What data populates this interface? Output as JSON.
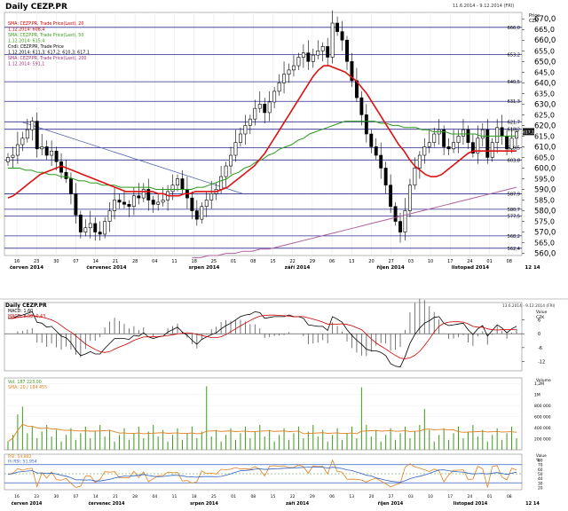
{
  "window": {
    "title": "Daily CEZP.PR",
    "date_range": "11.6.2014 - 9.12.2014 (FRI)",
    "lower_date_range": "13.6.2014 - 9.12.2014 (FRI)"
  },
  "main_panel": {
    "legend": [
      {
        "text": "SMA: CEZP.PR, Trade Price(Last), 20",
        "color": "#cc0000"
      },
      {
        "text": "1.12.2014: 608,4",
        "color": "#cc0000"
      },
      {
        "text": "SMA: CEZP.PR, Trade Price(Last), 50",
        "color": "#3a9a1a"
      },
      {
        "text": "1.12.2014: 615,4",
        "color": "#3a9a1a"
      },
      {
        "text": "Cndl: CEZP.PR, Trade Price",
        "color": "#000000"
      },
      {
        "text": "1.12.2014: 611,3; 617,2; 610,3; 617,1",
        "color": "#000000"
      },
      {
        "text": "SMA: CEZP.PR, Trade Price(Last), 200",
        "color": "#a0307a"
      },
      {
        "text": "1.12.2014: 591,1",
        "color": "#a0307a"
      }
    ],
    "price_label": "Price",
    "currency_label": "CZK",
    "y_ticks": [
      "670,0",
      "665,0",
      "660,0",
      "655,0",
      "650,0",
      "645,0",
      "640,0",
      "635,0",
      "630,0",
      "625,0",
      "620,0",
      "615,0",
      "610,0",
      "605,0",
      "600,0",
      "595,0",
      "590,0",
      "585,0",
      "580,0",
      "575,0",
      "570,0",
      "565,0",
      "560,0"
    ],
    "h_lines": [
      {
        "value": 666.0,
        "label": "666,0"
      },
      {
        "value": 653.2,
        "label": "653,2"
      },
      {
        "value": 640.5,
        "label": "640,5"
      },
      {
        "value": 631.3,
        "label": "631,3"
      },
      {
        "value": 621.7,
        "label": "621,7"
      },
      {
        "value": 618.2,
        "label": "618,2"
      },
      {
        "value": 609.5,
        "label": "609,5"
      },
      {
        "value": 603.8,
        "label": "603,8"
      },
      {
        "value": 587.9,
        "label": "587,9"
      },
      {
        "value": 580.7,
        "label": "580,7"
      },
      {
        "value": 577.5,
        "label": "577,5"
      },
      {
        "value": 568.2,
        "label": "568,2"
      },
      {
        "value": 562.4,
        "label": "562,4"
      }
    ],
    "last_price_badge": "617,1",
    "day_ticks": [
      "16",
      "23",
      "30",
      "07",
      "14",
      "21",
      "28",
      "04",
      "11",
      "18",
      "25",
      "01",
      "08",
      "15",
      "22",
      "29",
      "06",
      "13",
      "20",
      "27",
      "03",
      "10",
      "17",
      "24",
      "01",
      "08"
    ],
    "month_labels": [
      "červen 2014",
      "červenec 2014",
      "srpen 2014",
      "září 2014",
      "říjen 2014",
      "listopad 2014",
      "12 14"
    ]
  },
  "chart_data": [
    {
      "type": "candlestick",
      "title": "Daily CEZP.PR",
      "ylim": [
        559,
        673
      ],
      "x_start": "2014-06-11",
      "x_end": "2014-12-09",
      "close": [
        605,
        606,
        611,
        614,
        618,
        622,
        609,
        610,
        606,
        608,
        603,
        598,
        595,
        588,
        578,
        570,
        572,
        574,
        570,
        569,
        575,
        580,
        585,
        584,
        583,
        582,
        587,
        586,
        590,
        585,
        583,
        584,
        585,
        589,
        592,
        595,
        590,
        586,
        580,
        576,
        582,
        585,
        588,
        590,
        596,
        601,
        606,
        612,
        616,
        620,
        623,
        628,
        630,
        626,
        631,
        636,
        640,
        644,
        646,
        648,
        652,
        654,
        650,
        653,
        655,
        657,
        652,
        668,
        664,
        660,
        650,
        641,
        633,
        625,
        616,
        610,
        606,
        600,
        592,
        582,
        575,
        570,
        580,
        592,
        600,
        606,
        610,
        612,
        616,
        618,
        610,
        609,
        612,
        615,
        618,
        612,
        607,
        614,
        618,
        605,
        612,
        619,
        615,
        609,
        614,
        617
      ],
      "sma20": [
        586,
        587,
        589,
        591,
        593,
        595,
        597,
        598,
        599,
        600,
        601,
        600,
        599,
        598,
        597,
        596,
        595,
        594,
        593,
        592,
        591,
        590,
        589,
        589,
        589,
        589,
        589,
        589,
        588,
        588,
        587,
        587,
        587,
        588,
        588,
        589,
        589,
        589,
        589,
        589,
        590,
        591,
        593,
        595,
        597,
        599,
        601,
        604,
        607,
        611,
        615,
        619,
        623,
        627,
        631,
        635,
        639,
        643,
        646,
        648,
        648,
        647,
        646,
        645,
        643,
        641,
        638,
        635,
        631,
        627,
        623,
        619,
        615,
        611,
        608,
        604,
        601,
        599,
        597,
        596,
        596,
        597,
        599,
        601,
        603,
        605,
        607,
        608,
        608,
        608,
        608,
        608,
        608,
        608,
        608,
        608
      ],
      "sma50": [
        600,
        600,
        600,
        599,
        599,
        598,
        598,
        597,
        597,
        596,
        596,
        595,
        594,
        594,
        593,
        593,
        592,
        592,
        592,
        591,
        591,
        591,
        591,
        591,
        591,
        590,
        590,
        590,
        590,
        590,
        590,
        590,
        591,
        591,
        592,
        593,
        594,
        595,
        597,
        598,
        600,
        601,
        603,
        604,
        606,
        607,
        609,
        610,
        611,
        613,
        614,
        616,
        617,
        618,
        619,
        620,
        621,
        622,
        622,
        622,
        622,
        622,
        622,
        621,
        621,
        620,
        620,
        619,
        619,
        619,
        618,
        618,
        617,
        617,
        617,
        616,
        616,
        616,
        616,
        616,
        615,
        615,
        615,
        615,
        615,
        615,
        615
      ],
      "sma200": [
        558,
        558,
        559,
        559,
        560,
        560,
        561,
        561,
        562,
        562,
        563,
        564,
        565,
        566,
        567,
        568,
        569,
        570,
        571,
        572,
        573,
        574,
        575,
        576,
        577,
        578,
        579,
        580,
        581,
        582,
        583,
        584,
        585,
        586,
        587,
        588,
        589,
        590,
        591
      ],
      "trendline": {
        "from": [
          0.035,
          621.5
        ],
        "to": [
          0.46,
          588
        ]
      }
    },
    {
      "type": "line",
      "title": "MACD",
      "legend": [
        {
          "text": "MACD: 1,60",
          "color": "#000000"
        },
        {
          "text": "MACD: 8,98 -0,43",
          "color": "#cc0000"
        }
      ],
      "ylabel": "CZK",
      "y_ticks": [
        "6",
        "0",
        "-6",
        "-12"
      ],
      "ylim": [
        -16,
        10
      ]
    },
    {
      "type": "bar",
      "title": "Volume",
      "legend": [
        {
          "text": "Vol: 187 223,00",
          "color": "#3a9a1a"
        },
        {
          "text": "SMA: 20 / 164 455",
          "color": "#e08020"
        }
      ],
      "y_ticks": [
        "1,2M",
        "1M",
        "800 000",
        "600 000",
        "400 000",
        "200 000"
      ],
      "ylim": [
        0,
        1300000
      ]
    },
    {
      "type": "line",
      "title": "RSI",
      "legend": [
        {
          "text": "RSI: 54,882",
          "color": "#e08020"
        },
        {
          "text": "Hi RSI: 51,954",
          "color": "#3060c0"
        }
      ],
      "ylabel": "%",
      "y_ticks": [
        "80",
        "70",
        "60",
        "50",
        "40",
        "30",
        "20"
      ],
      "ylim": [
        15,
        85
      ],
      "bottom_day_ticks": [
        "16",
        "23",
        "30",
        "07",
        "14",
        "21",
        "28",
        "04",
        "11",
        "18",
        "25",
        "01",
        "08",
        "15",
        "22",
        "29",
        "06",
        "13",
        "20",
        "27",
        "03",
        "10",
        "17",
        "24",
        "01",
        "08"
      ],
      "bottom_month_labels": [
        "červen 2014",
        "červenec 2014",
        "srpen 2014",
        "září 2014",
        "říjen 2014",
        "listopad 2014",
        "12 14"
      ]
    }
  ],
  "colors": {
    "sma20": "#dd1111",
    "sma50": "#2a9a1a",
    "sma200": "#b060a0",
    "trend": "#5060b0",
    "hline": "#2b2b8a",
    "candle_up": "#ffffff",
    "candle_down": "#000000"
  }
}
